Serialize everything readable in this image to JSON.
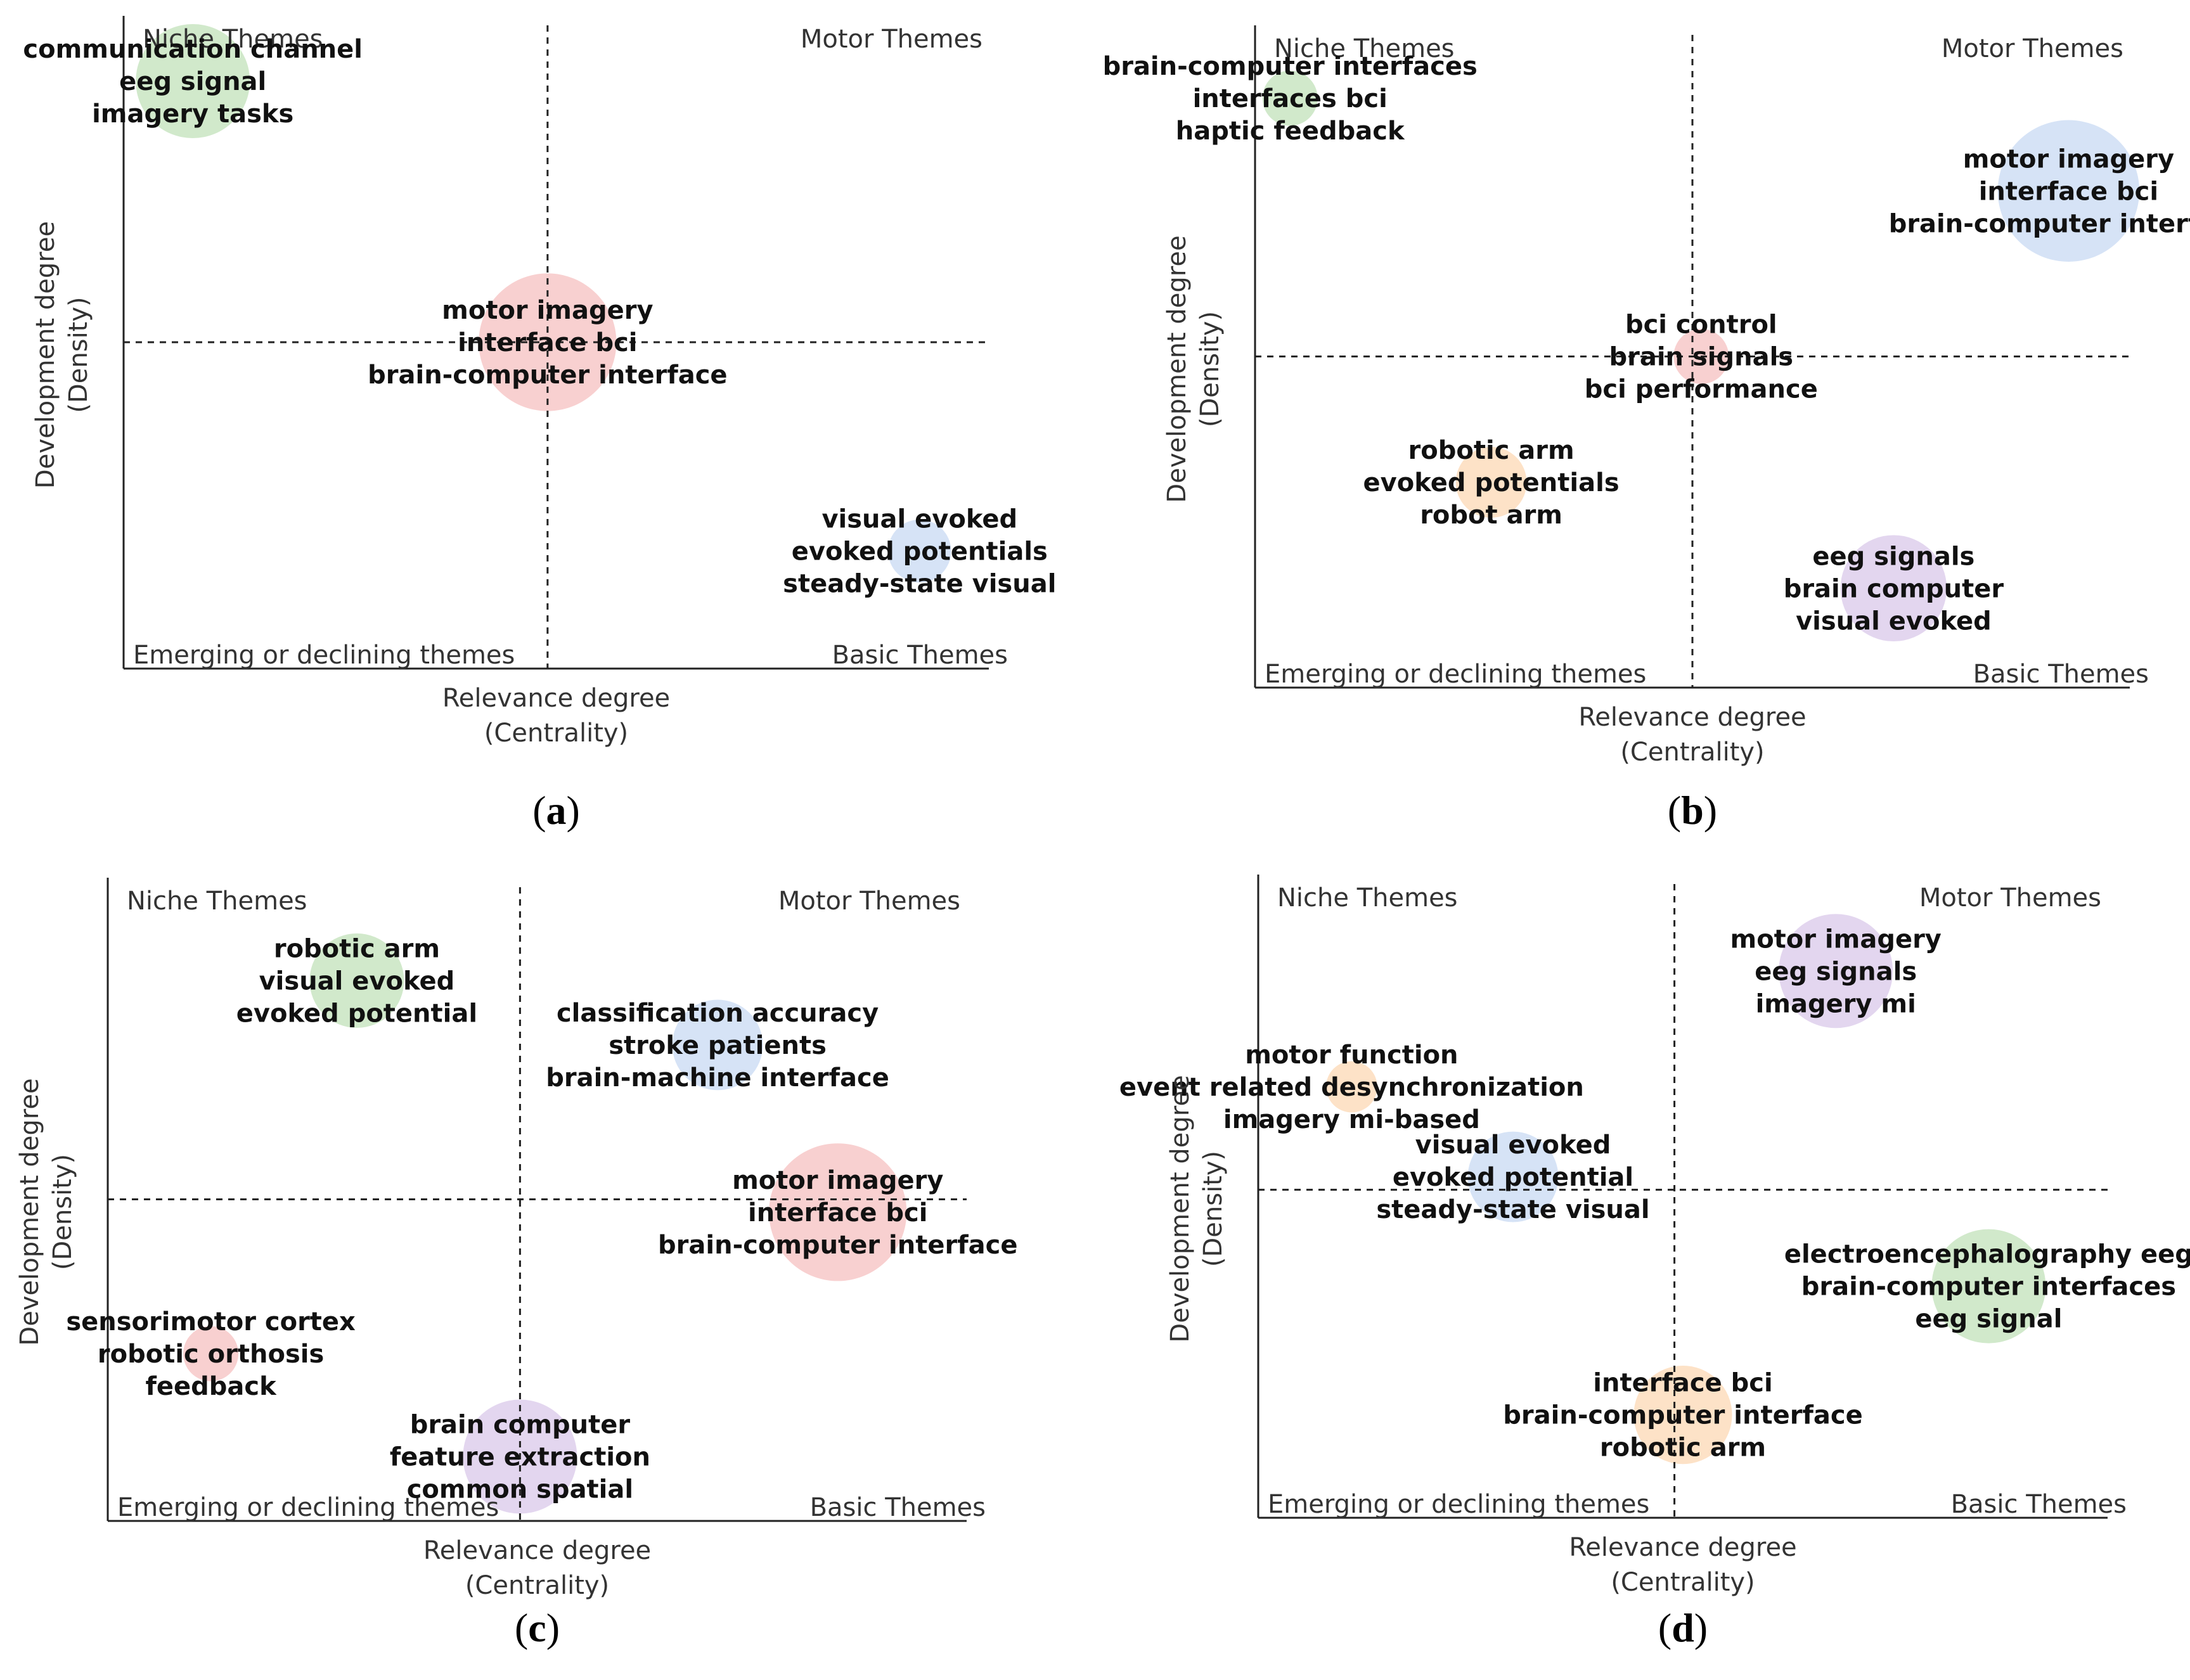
{
  "chart_data": [
    {
      "type": "scatter",
      "panel_label": "(a)",
      "xlabel": "Relevance degree",
      "xlabel_sub": "(Centrality)",
      "ylabel": "Development degree",
      "ylabel_sub": "(Density)",
      "quadrants": {
        "top_left": "Niche Themes",
        "top_right": "Motor Themes",
        "bottom_left": "Emerging or declining themes",
        "bottom_right": "Basic Themes"
      },
      "xlim": [
        0,
        1
      ],
      "ylim": [
        0,
        1
      ],
      "split": [
        0.49,
        0.5
      ],
      "points": [
        {
          "x": 0.08,
          "y": 0.9,
          "size": 1.0,
          "color": "#cfe8c8",
          "labels": [
            "communication channel",
            "eeg signal",
            "imagery tasks"
          ]
        },
        {
          "x": 0.49,
          "y": 0.5,
          "size": 1.3,
          "color": "#f8cdcd",
          "labels": [
            "motor imagery",
            "interface bci",
            "brain-computer interface"
          ]
        },
        {
          "x": 0.92,
          "y": 0.18,
          "size": 0.35,
          "color": "#d4e2f6",
          "labels": [
            "visual evoked",
            "evoked potentials",
            "steady-state visual"
          ]
        }
      ]
    },
    {
      "type": "scatter",
      "panel_label": "(b)",
      "xlabel": "Relevance degree",
      "xlabel_sub": "(Centrality)",
      "ylabel": "Development degree",
      "ylabel_sub": "(Density)",
      "quadrants": {
        "top_left": "Niche Themes",
        "top_right": "Motor Themes",
        "bottom_left": "Emerging or declining themes",
        "bottom_right": "Basic Themes"
      },
      "xlim": [
        0,
        1
      ],
      "ylim": [
        0,
        1
      ],
      "split": [
        0.5,
        0.5
      ],
      "points": [
        {
          "x": 0.04,
          "y": 0.89,
          "size": 0.25,
          "color": "#cfe8c8",
          "labels": [
            "brain-computer interfaces",
            "interfaces bci",
            "haptic feedback"
          ]
        },
        {
          "x": 0.93,
          "y": 0.75,
          "size": 1.35,
          "color": "#d4e2f6",
          "labels": [
            "motor imagery",
            "interface bci",
            "brain-computer interface"
          ]
        },
        {
          "x": 0.51,
          "y": 0.5,
          "size": 0.25,
          "color": "#f8cdcd",
          "labels": [
            "bci control",
            "brain signals",
            "bci performance"
          ]
        },
        {
          "x": 0.27,
          "y": 0.31,
          "size": 0.45,
          "color": "#fde0c4",
          "labels": [
            "robotic arm",
            "evoked potentials",
            "robot arm"
          ]
        },
        {
          "x": 0.73,
          "y": 0.15,
          "size": 0.9,
          "color": "#e2d4ee",
          "labels": [
            "eeg signals",
            "brain computer",
            "visual evoked"
          ]
        }
      ]
    },
    {
      "type": "scatter",
      "panel_label": "(c)",
      "xlabel": "Relevance degree",
      "xlabel_sub": "(Centrality)",
      "ylabel": "Development degree",
      "ylabel_sub": "(Density)",
      "quadrants": {
        "top_left": "Niche Themes",
        "top_right": "Motor Themes",
        "bottom_left": "Emerging or declining themes",
        "bottom_right": "Basic Themes"
      },
      "xlim": [
        0,
        1
      ],
      "ylim": [
        0,
        1
      ],
      "split": [
        0.48,
        0.5
      ],
      "points": [
        {
          "x": 0.29,
          "y": 0.84,
          "size": 0.75,
          "color": "#cfe8c8",
          "labels": [
            "robotic arm",
            "visual evoked",
            "evoked potential"
          ]
        },
        {
          "x": 0.71,
          "y": 0.74,
          "size": 0.7,
          "color": "#d4e2f6",
          "labels": [
            "classification accuracy",
            "stroke patients",
            "brain-machine interface"
          ]
        },
        {
          "x": 0.85,
          "y": 0.48,
          "size": 1.3,
          "color": "#f8cdcd",
          "labels": [
            "motor imagery",
            "interface bci",
            "brain-computer interface"
          ]
        },
        {
          "x": 0.12,
          "y": 0.26,
          "size": 0.25,
          "color": "#f8cdcd",
          "labels": [
            "sensorimotor cortex",
            "robotic orthosis",
            "feedback"
          ]
        },
        {
          "x": 0.48,
          "y": 0.1,
          "size": 1.0,
          "color": "#e2d4ee",
          "labels": [
            "brain computer",
            "feature extraction",
            "common spatial"
          ]
        }
      ]
    },
    {
      "type": "scatter",
      "panel_label": "(d)",
      "xlabel": "Relevance degree",
      "xlabel_sub": "(Centrality)",
      "ylabel": "Development degree",
      "ylabel_sub": "(Density)",
      "quadrants": {
        "top_left": "Niche Themes",
        "top_right": "Motor Themes",
        "bottom_left": "Emerging or declining themes",
        "bottom_right": "Basic Themes"
      },
      "xlim": [
        0,
        1
      ],
      "ylim": [
        0,
        1
      ],
      "split": [
        0.49,
        0.51
      ],
      "points": [
        {
          "x": 0.68,
          "y": 0.85,
          "size": 1.0,
          "color": "#e2d4ee",
          "labels": [
            "motor imagery",
            "eeg signals",
            "imagery mi"
          ]
        },
        {
          "x": 0.11,
          "y": 0.67,
          "size": 0.2,
          "color": "#fde0c4",
          "labels": [
            "motor function",
            "event related desynchronization",
            "imagery mi-based"
          ]
        },
        {
          "x": 0.3,
          "y": 0.53,
          "size": 0.7,
          "color": "#d4e2f6",
          "labels": [
            "visual evoked",
            "evoked potential",
            "steady-state visual"
          ]
        },
        {
          "x": 0.86,
          "y": 0.36,
          "size": 1.0,
          "color": "#cfe8c8",
          "labels": [
            "electroencephalography eeg",
            "brain-computer interfaces",
            "eeg signal"
          ]
        },
        {
          "x": 0.5,
          "y": 0.16,
          "size": 0.8,
          "color": "#fde0c4",
          "labels": [
            "interface bci",
            "brain-computer interface",
            "robotic arm"
          ]
        }
      ]
    }
  ]
}
